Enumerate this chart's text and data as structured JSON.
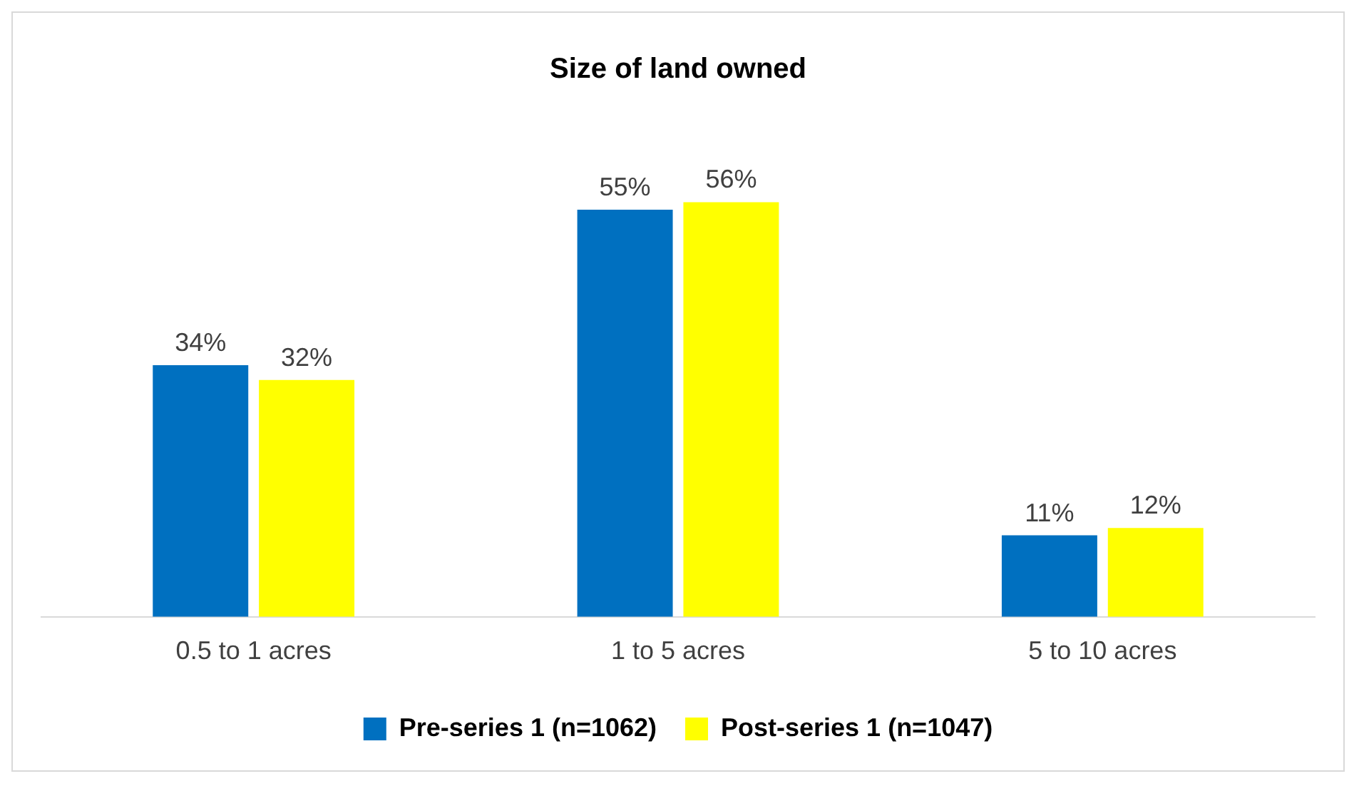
{
  "chart_data": {
    "type": "bar",
    "title": "Size of land owned",
    "categories": [
      "0.5 to 1 acres",
      "1 to 5 acres",
      "5 to 10 acres"
    ],
    "series": [
      {
        "name": "Pre-series 1 (n=1062)",
        "color": "#0070c0",
        "values": [
          34,
          55,
          11
        ],
        "value_labels": [
          "34%",
          "55%",
          "11%"
        ]
      },
      {
        "name": "Post-series 1 (n=1047)",
        "color": "#ffff00",
        "values": [
          32,
          56,
          12
        ],
        "value_labels": [
          "32%",
          "56%",
          "12%"
        ]
      }
    ],
    "legend": "bottom",
    "grid": false
  }
}
